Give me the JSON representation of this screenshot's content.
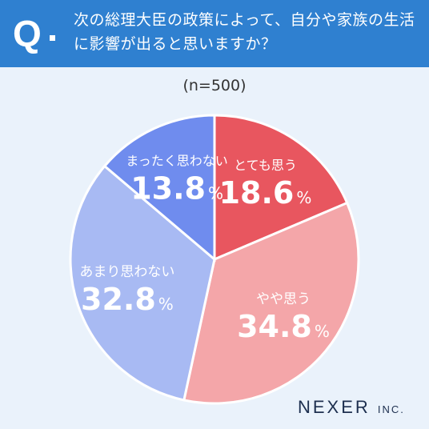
{
  "header": {
    "q_mark": "Q",
    "question": "次の総理大臣の政策によって、自分や家族の生活に影響が出ると思いますか？"
  },
  "sample_size": "(n=500)",
  "chart_data": {
    "type": "pie",
    "title": "次の総理大臣の政策によって、自分や家族の生活に影響が出ると思いますか？",
    "n": 500,
    "slices": [
      {
        "label": "とても思う",
        "value": 18.6,
        "display": "18.6",
        "color": "#e8565f"
      },
      {
        "label": "やや思う",
        "value": 34.8,
        "display": "34.8",
        "color": "#f4a6a9"
      },
      {
        "label": "あまり思わない",
        "value": 32.8,
        "display": "32.8",
        "color": "#a8baf3"
      },
      {
        "label": "まったく思わない",
        "value": 13.8,
        "display": "13.8",
        "color": "#6f8cee"
      }
    ],
    "unit": "%"
  },
  "logo": {
    "name": "NEXER",
    "suffix": "INC."
  }
}
